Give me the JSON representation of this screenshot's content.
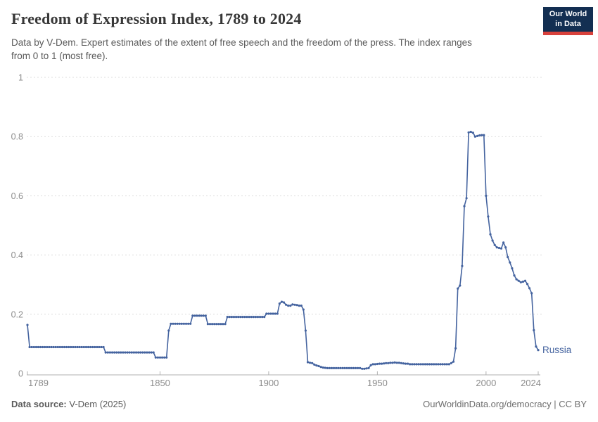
{
  "header": {
    "title": "Freedom of Expression Index, 1789 to 2024",
    "subtitle_line1": "Data by V-Dem. Expert estimates of the extent of free speech and the freedom of the press. The index ranges",
    "subtitle_line2": "from 0 to 1 (most free).",
    "logo": {
      "line1": "Our World",
      "line2": "in Data",
      "bg_color": "#132f52",
      "accent_color": "#d8413c"
    }
  },
  "footer": {
    "source_label": "Data source:",
    "source_value": " V-Dem (2025)",
    "right_text": "OurWorldinData.org/democracy | CC BY"
  },
  "chart_data": {
    "type": "line",
    "title": "Freedom of Expression Index, 1789 to 2024",
    "xlabel": "",
    "ylabel": "",
    "xlim": [
      1789,
      2024
    ],
    "ylim": [
      0,
      1
    ],
    "x_ticks": [
      1789,
      1850,
      1900,
      1950,
      2000,
      2024
    ],
    "y_ticks": [
      0,
      0.2,
      0.4,
      0.6,
      0.8,
      1
    ],
    "grid": "horizontal-dashed",
    "legend": "end-of-line-label",
    "line_color": "#44639f",
    "grid_color": "#dcdcdc",
    "axis_color": "#b0b0b0",
    "tick_label_color": "#8c8c8c",
    "resolution": "annual, encoded as runs [startYear, endYear, value]",
    "series": [
      {
        "name": "Russia",
        "annual_runs": [
          [
            1789,
            1789,
            0.164
          ],
          [
            1790,
            1824,
            0.089
          ],
          [
            1825,
            1847,
            0.071
          ],
          [
            1848,
            1853,
            0.054
          ],
          [
            1854,
            1854,
            0.145
          ],
          [
            1855,
            1864,
            0.168
          ],
          [
            1865,
            1871,
            0.195
          ],
          [
            1872,
            1880,
            0.167
          ],
          [
            1881,
            1898,
            0.191
          ],
          [
            1899,
            1904,
            0.202
          ],
          [
            1905,
            1905,
            0.236
          ],
          [
            1906,
            1906,
            0.242
          ],
          [
            1907,
            1907,
            0.24
          ],
          [
            1908,
            1908,
            0.232
          ],
          [
            1909,
            1910,
            0.229
          ],
          [
            1911,
            1911,
            0.233
          ],
          [
            1912,
            1912,
            0.232
          ],
          [
            1913,
            1913,
            0.231
          ],
          [
            1914,
            1915,
            0.229
          ],
          [
            1916,
            1916,
            0.216
          ],
          [
            1917,
            1917,
            0.145
          ],
          [
            1918,
            1918,
            0.038
          ],
          [
            1919,
            1919,
            0.036
          ],
          [
            1920,
            1920,
            0.035
          ],
          [
            1921,
            1921,
            0.03
          ],
          [
            1922,
            1922,
            0.027
          ],
          [
            1923,
            1923,
            0.025
          ],
          [
            1924,
            1924,
            0.022
          ],
          [
            1925,
            1925,
            0.02
          ],
          [
            1926,
            1926,
            0.019
          ],
          [
            1927,
            1942,
            0.018
          ],
          [
            1943,
            1944,
            0.016
          ],
          [
            1945,
            1945,
            0.017
          ],
          [
            1946,
            1946,
            0.018
          ],
          [
            1947,
            1947,
            0.028
          ],
          [
            1948,
            1949,
            0.031
          ],
          [
            1950,
            1950,
            0.032
          ],
          [
            1951,
            1952,
            0.033
          ],
          [
            1953,
            1953,
            0.034
          ],
          [
            1954,
            1955,
            0.035
          ],
          [
            1956,
            1957,
            0.036
          ],
          [
            1958,
            1958,
            0.037
          ],
          [
            1959,
            1960,
            0.036
          ],
          [
            1961,
            1961,
            0.035
          ],
          [
            1962,
            1962,
            0.034
          ],
          [
            1963,
            1964,
            0.033
          ],
          [
            1965,
            1983,
            0.031
          ],
          [
            1984,
            1984,
            0.035
          ],
          [
            1985,
            1985,
            0.04
          ],
          [
            1986,
            1986,
            0.085
          ],
          [
            1987,
            1987,
            0.287
          ],
          [
            1988,
            1988,
            0.297
          ],
          [
            1989,
            1989,
            0.363
          ],
          [
            1990,
            1990,
            0.565
          ],
          [
            1991,
            1991,
            0.592
          ],
          [
            1992,
            1992,
            0.814
          ],
          [
            1993,
            1993,
            0.816
          ],
          [
            1994,
            1994,
            0.813
          ],
          [
            1995,
            1995,
            0.8
          ],
          [
            1996,
            1996,
            0.802
          ],
          [
            1997,
            1997,
            0.804
          ],
          [
            1998,
            1999,
            0.805
          ],
          [
            2000,
            2000,
            0.6
          ],
          [
            2001,
            2001,
            0.53
          ],
          [
            2002,
            2002,
            0.47
          ],
          [
            2003,
            2003,
            0.449
          ],
          [
            2004,
            2004,
            0.434
          ],
          [
            2005,
            2005,
            0.426
          ],
          [
            2006,
            2006,
            0.424
          ],
          [
            2007,
            2007,
            0.422
          ],
          [
            2008,
            2008,
            0.442
          ],
          [
            2009,
            2009,
            0.426
          ],
          [
            2010,
            2010,
            0.393
          ],
          [
            2011,
            2011,
            0.375
          ],
          [
            2012,
            2012,
            0.355
          ],
          [
            2013,
            2013,
            0.331
          ],
          [
            2014,
            2014,
            0.318
          ],
          [
            2015,
            2015,
            0.313
          ],
          [
            2016,
            2016,
            0.308
          ],
          [
            2017,
            2017,
            0.31
          ],
          [
            2018,
            2018,
            0.313
          ],
          [
            2019,
            2019,
            0.302
          ],
          [
            2020,
            2020,
            0.288
          ],
          [
            2021,
            2021,
            0.271
          ],
          [
            2022,
            2022,
            0.146
          ],
          [
            2023,
            2023,
            0.091
          ],
          [
            2024,
            2024,
            0.079
          ]
        ]
      }
    ]
  }
}
